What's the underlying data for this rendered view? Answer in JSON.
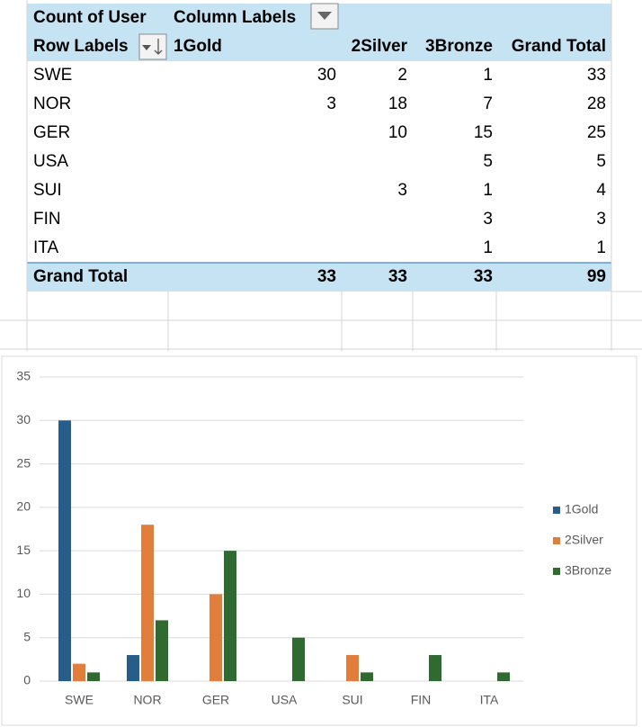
{
  "pivot": {
    "corner": "Count of User",
    "column_labels": "Column Labels",
    "row_labels": "Row Labels",
    "columns": [
      "1Gold",
      "2Silver",
      "3Bronze",
      "Grand Total"
    ],
    "rows": [
      {
        "label": "SWE",
        "cells": [
          30,
          2,
          1,
          33
        ]
      },
      {
        "label": "NOR",
        "cells": [
          3,
          18,
          7,
          28
        ]
      },
      {
        "label": "GER",
        "cells": [
          null,
          10,
          15,
          25
        ]
      },
      {
        "label": "USA",
        "cells": [
          null,
          null,
          5,
          5
        ]
      },
      {
        "label": "SUI",
        "cells": [
          null,
          3,
          1,
          4
        ]
      },
      {
        "label": "FIN",
        "cells": [
          null,
          null,
          3,
          3
        ]
      },
      {
        "label": "ITA",
        "cells": [
          null,
          null,
          1,
          1
        ]
      }
    ],
    "grand_total": {
      "label": "Grand Total",
      "cells": [
        33,
        33,
        33,
        99
      ]
    }
  },
  "chart_data": {
    "type": "bar",
    "categories": [
      "SWE",
      "NOR",
      "GER",
      "USA",
      "SUI",
      "FIN",
      "ITA"
    ],
    "series": [
      {
        "name": "1Gold",
        "color": "#275d8b",
        "values": [
          30,
          3,
          null,
          null,
          null,
          null,
          null
        ]
      },
      {
        "name": "2Silver",
        "color": "#e27e3b",
        "values": [
          2,
          18,
          10,
          null,
          3,
          null,
          null
        ]
      },
      {
        "name": "3Bronze",
        "color": "#2f6a31",
        "values": [
          1,
          7,
          15,
          5,
          1,
          3,
          1
        ]
      }
    ],
    "ylim": [
      0,
      35
    ],
    "yticks": [
      0,
      5,
      10,
      15,
      20,
      25,
      30,
      35
    ],
    "grid": true,
    "legend": "right"
  }
}
